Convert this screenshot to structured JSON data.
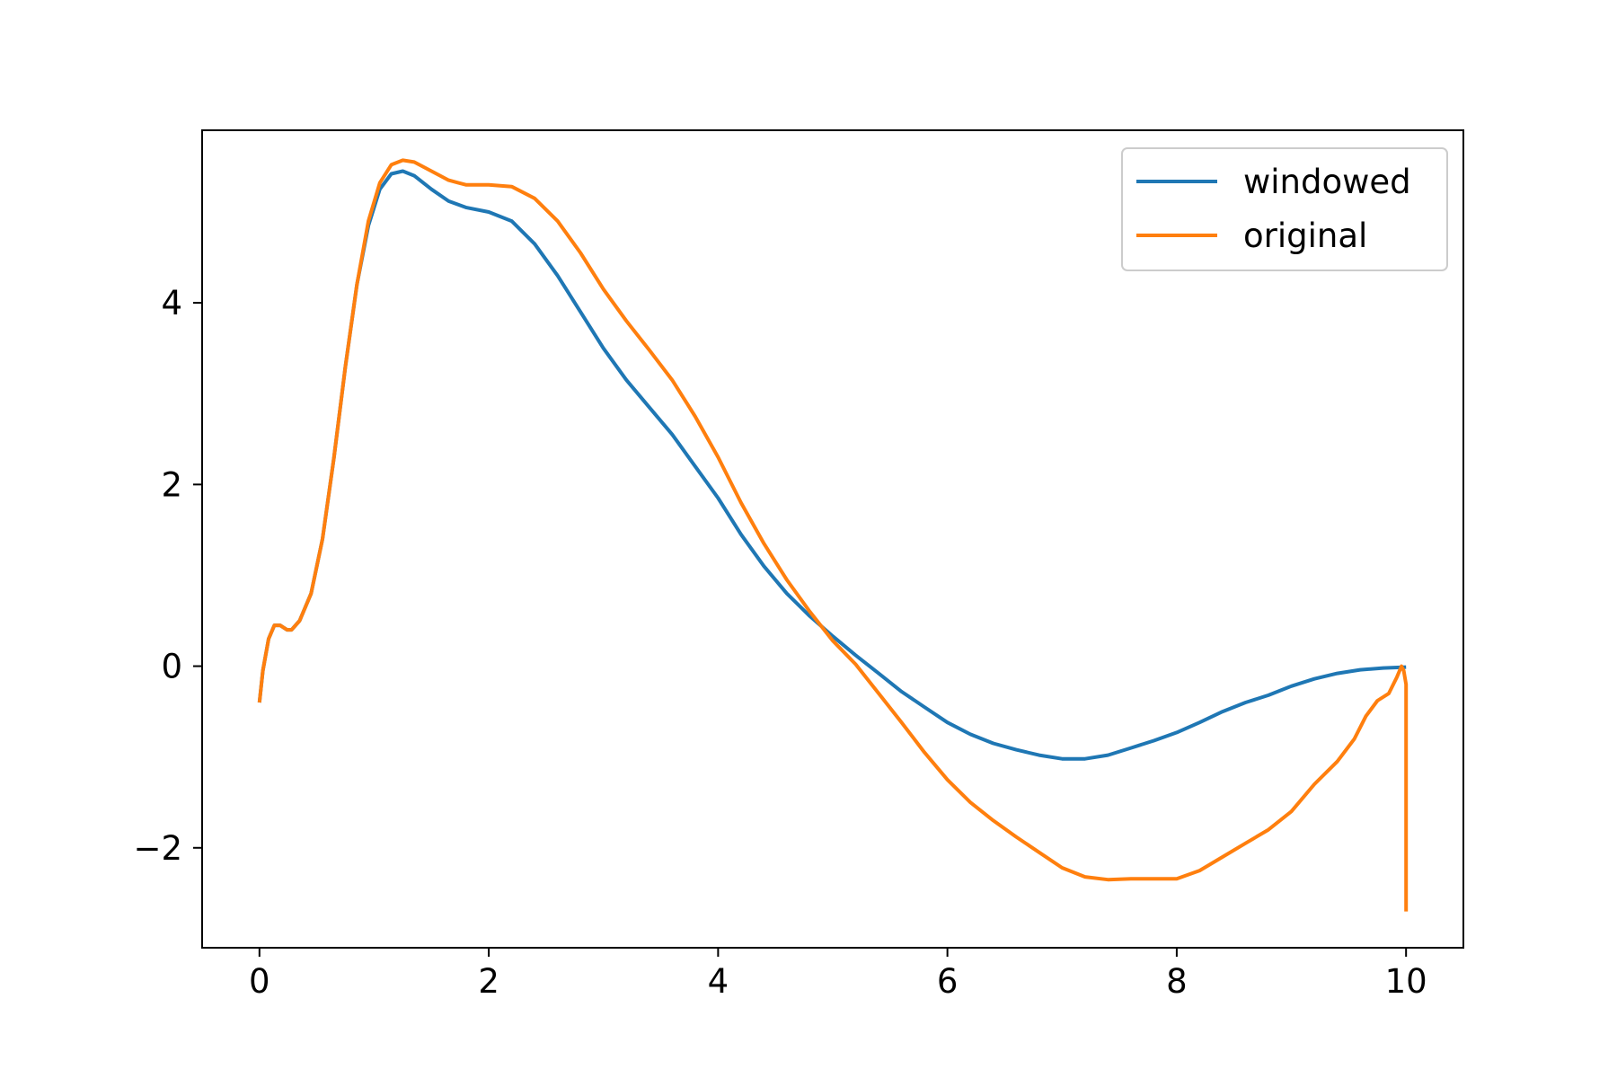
{
  "chart_data": {
    "type": "line",
    "title": "",
    "xlabel": "",
    "ylabel": "",
    "xlim": [
      -0.5,
      10.5
    ],
    "ylim": [
      -3.1,
      5.9
    ],
    "xticks": [
      {
        "value": 0,
        "label": "0"
      },
      {
        "value": 2,
        "label": "2"
      },
      {
        "value": 4,
        "label": "4"
      },
      {
        "value": 6,
        "label": "6"
      },
      {
        "value": 8,
        "label": "8"
      },
      {
        "value": 10,
        "label": "10"
      }
    ],
    "yticks": [
      {
        "value": -2,
        "label": "−2"
      },
      {
        "value": 0,
        "label": "0"
      },
      {
        "value": 2,
        "label": "2"
      },
      {
        "value": 4,
        "label": "4"
      }
    ],
    "grid": false,
    "legend_position": "top-right",
    "series": [
      {
        "name": "windowed",
        "color": "#1f77b4",
        "points": [
          [
            0,
            -0.4
          ],
          [
            0.03,
            -0.05
          ],
          [
            0.08,
            0.3
          ],
          [
            0.13,
            0.45
          ],
          [
            0.18,
            0.45
          ],
          [
            0.24,
            0.4
          ],
          [
            0.28,
            0.4
          ],
          [
            0.35,
            0.5
          ],
          [
            0.45,
            0.8
          ],
          [
            0.55,
            1.4
          ],
          [
            0.65,
            2.3
          ],
          [
            0.75,
            3.3
          ],
          [
            0.85,
            4.2
          ],
          [
            0.95,
            4.85
          ],
          [
            1.05,
            5.25
          ],
          [
            1.15,
            5.42
          ],
          [
            1.25,
            5.45
          ],
          [
            1.35,
            5.4
          ],
          [
            1.5,
            5.25
          ],
          [
            1.65,
            5.12
          ],
          [
            1.8,
            5.05
          ],
          [
            2.0,
            5.0
          ],
          [
            2.2,
            4.9
          ],
          [
            2.4,
            4.65
          ],
          [
            2.6,
            4.3
          ],
          [
            2.8,
            3.9
          ],
          [
            3.0,
            3.5
          ],
          [
            3.2,
            3.15
          ],
          [
            3.4,
            2.85
          ],
          [
            3.6,
            2.55
          ],
          [
            3.8,
            2.2
          ],
          [
            4.0,
            1.85
          ],
          [
            4.2,
            1.45
          ],
          [
            4.4,
            1.1
          ],
          [
            4.6,
            0.8
          ],
          [
            4.8,
            0.55
          ],
          [
            5.0,
            0.33
          ],
          [
            5.2,
            0.12
          ],
          [
            5.4,
            -0.08
          ],
          [
            5.6,
            -0.28
          ],
          [
            5.8,
            -0.45
          ],
          [
            6.0,
            -0.62
          ],
          [
            6.2,
            -0.75
          ],
          [
            6.4,
            -0.85
          ],
          [
            6.6,
            -0.92
          ],
          [
            6.8,
            -0.98
          ],
          [
            7.0,
            -1.02
          ],
          [
            7.2,
            -1.02
          ],
          [
            7.4,
            -0.98
          ],
          [
            7.6,
            -0.9
          ],
          [
            7.8,
            -0.82
          ],
          [
            8.0,
            -0.73
          ],
          [
            8.2,
            -0.62
          ],
          [
            8.4,
            -0.5
          ],
          [
            8.6,
            -0.4
          ],
          [
            8.8,
            -0.32
          ],
          [
            9.0,
            -0.22
          ],
          [
            9.2,
            -0.14
          ],
          [
            9.4,
            -0.08
          ],
          [
            9.6,
            -0.04
          ],
          [
            9.8,
            -0.02
          ],
          [
            10.0,
            -0.01
          ]
        ]
      },
      {
        "name": "original",
        "color": "#ff7f0e",
        "points": [
          [
            0,
            -0.4
          ],
          [
            0.03,
            -0.05
          ],
          [
            0.08,
            0.3
          ],
          [
            0.13,
            0.45
          ],
          [
            0.18,
            0.45
          ],
          [
            0.24,
            0.4
          ],
          [
            0.28,
            0.4
          ],
          [
            0.35,
            0.5
          ],
          [
            0.45,
            0.8
          ],
          [
            0.55,
            1.4
          ],
          [
            0.65,
            2.3
          ],
          [
            0.75,
            3.3
          ],
          [
            0.85,
            4.2
          ],
          [
            0.95,
            4.9
          ],
          [
            1.05,
            5.32
          ],
          [
            1.15,
            5.52
          ],
          [
            1.25,
            5.57
          ],
          [
            1.35,
            5.55
          ],
          [
            1.5,
            5.45
          ],
          [
            1.65,
            5.35
          ],
          [
            1.8,
            5.3
          ],
          [
            2.0,
            5.3
          ],
          [
            2.2,
            5.28
          ],
          [
            2.4,
            5.15
          ],
          [
            2.6,
            4.9
          ],
          [
            2.8,
            4.55
          ],
          [
            3.0,
            4.15
          ],
          [
            3.2,
            3.8
          ],
          [
            3.4,
            3.48
          ],
          [
            3.6,
            3.15
          ],
          [
            3.8,
            2.75
          ],
          [
            4.0,
            2.3
          ],
          [
            4.2,
            1.8
          ],
          [
            4.4,
            1.35
          ],
          [
            4.6,
            0.95
          ],
          [
            4.8,
            0.6
          ],
          [
            5.0,
            0.28
          ],
          [
            5.2,
            0.02
          ],
          [
            5.4,
            -0.3
          ],
          [
            5.6,
            -0.62
          ],
          [
            5.8,
            -0.95
          ],
          [
            6.0,
            -1.25
          ],
          [
            6.2,
            -1.5
          ],
          [
            6.4,
            -1.7
          ],
          [
            6.6,
            -1.88
          ],
          [
            6.8,
            -2.05
          ],
          [
            7.0,
            -2.22
          ],
          [
            7.2,
            -2.32
          ],
          [
            7.4,
            -2.35
          ],
          [
            7.6,
            -2.34
          ],
          [
            7.8,
            -2.34
          ],
          [
            8.0,
            -2.34
          ],
          [
            8.2,
            -2.25
          ],
          [
            8.4,
            -2.1
          ],
          [
            8.6,
            -1.95
          ],
          [
            8.8,
            -1.8
          ],
          [
            9.0,
            -1.6
          ],
          [
            9.2,
            -1.3
          ],
          [
            9.4,
            -1.05
          ],
          [
            9.55,
            -0.8
          ],
          [
            9.65,
            -0.55
          ],
          [
            9.75,
            -0.38
          ],
          [
            9.85,
            -0.3
          ],
          [
            9.92,
            -0.12
          ],
          [
            9.96,
            0.0
          ],
          [
            9.98,
            -0.05
          ],
          [
            10.0,
            -0.2
          ],
          [
            10.0,
            -2.7
          ]
        ]
      }
    ]
  }
}
